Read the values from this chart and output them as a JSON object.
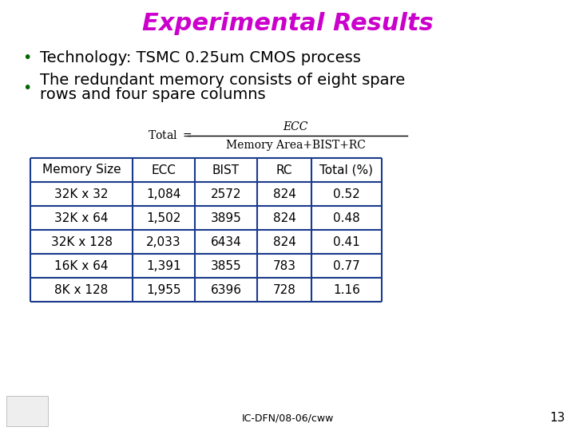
{
  "title": "Experimental Results",
  "title_color": "#CC00CC",
  "title_fontsize": 22,
  "bullet_color": "#006600",
  "bullet1": "Technology: TSMC 0.25um CMOS process",
  "bullet2_line1": "The redundant memory consists of eight spare",
  "bullet2_line2": "rows and four spare columns",
  "bullet_fontsize": 14,
  "formula_numerator": "ECC",
  "formula_denominator": "Memory Area+BIST+RC",
  "table_headers": [
    "Memory Size",
    "ECC",
    "BIST",
    "RC",
    "Total (%)"
  ],
  "table_rows": [
    [
      "32K x 32",
      "1,084",
      "2572",
      "824",
      "0.52"
    ],
    [
      "32K x 64",
      "1,502",
      "3895",
      "824",
      "0.48"
    ],
    [
      "32K x 128",
      "2,033",
      "6434",
      "824",
      "0.41"
    ],
    [
      "16K x 64",
      "1,391",
      "3855",
      "783",
      "0.77"
    ],
    [
      "8K x 128",
      "1,955",
      "6396",
      "728",
      "1.16"
    ]
  ],
  "table_border_color": "#1a3a8c",
  "footer_text": "IC-DFN/08-06/cww",
  "page_number": "13",
  "bg_color": "#ffffff",
  "text_color": "#000000",
  "table_fontsize": 11
}
